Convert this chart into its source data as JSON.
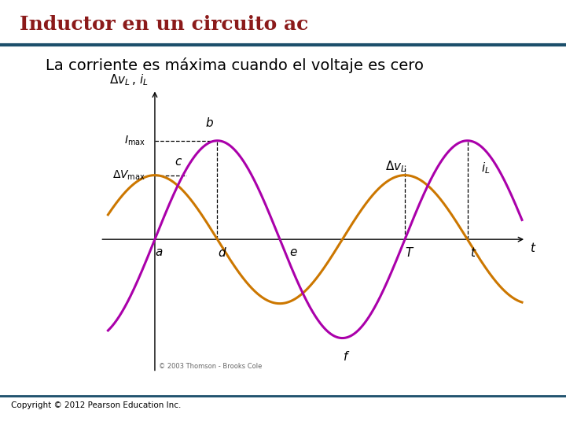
{
  "title": "Inductor en un circuito ac",
  "subtitle": "La corriente es máxima cuando el voltaje es cero",
  "title_color": "#8B1A1A",
  "title_fontsize": 18,
  "subtitle_fontsize": 14,
  "background_color": "#FFFFFF",
  "header_line_color": "#1C4F6B",
  "footer_text": "Copyright © 2012 Pearson Education Inc.",
  "copyright_text": "© 2003 Thomson - Brooks Cole",
  "curve_voltage_color": "#CC7700",
  "curve_current_color": "#AA00AA",
  "amplitude_current": 1.0,
  "amplitude_voltage": 0.65,
  "T_period": 3.2,
  "x_orig": 0.6,
  "x_min": -0.15,
  "x_max": 5.5,
  "y_min": -1.45,
  "y_max": 1.65,
  "label_fontsize": 11
}
